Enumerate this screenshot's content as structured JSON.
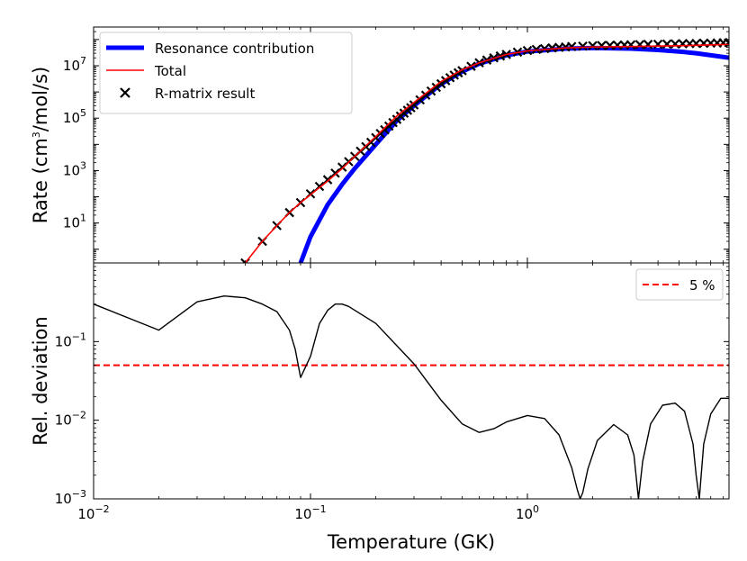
{
  "chart_data": [
    {
      "type": "line",
      "panel": "top",
      "ylabel": "Rate (cm3/mol/s)",
      "ylabel_parts": {
        "pre": "Rate (cm",
        "sup": "3",
        "post": "/mol/s)"
      },
      "xscale": "log",
      "yscale": "log",
      "xlim": [
        0.01,
        8.5
      ],
      "ylim": [
        0.3,
        300000000
      ],
      "yticks": [
        {
          "value": 10,
          "base": "10",
          "exp": "1"
        },
        {
          "value": 1000,
          "base": "10",
          "exp": "3"
        },
        {
          "value": 100000,
          "base": "10",
          "exp": "5"
        },
        {
          "value": 10000000,
          "base": "10",
          "exp": "7"
        }
      ],
      "legend": {
        "placement": "top-left",
        "entries": [
          {
            "label": "Resonance contribution",
            "color": "#0000ff",
            "style": "thick-line"
          },
          {
            "label": "Total",
            "color": "#ff0000",
            "style": "line"
          },
          {
            "label": "R-matrix result",
            "color": "#000000",
            "style": "x-marker"
          }
        ]
      },
      "series": [
        {
          "name": "Resonance contribution",
          "color": "#0000ff",
          "x": [
            0.09,
            0.1,
            0.12,
            0.14,
            0.16,
            0.2,
            0.25,
            0.3,
            0.4,
            0.5,
            0.6,
            0.8,
            1.0,
            1.5,
            2.0,
            3.0,
            4.0,
            5.0,
            6.0,
            8.5
          ],
          "y": [
            0.3,
            3,
            50,
            300,
            1200,
            10000,
            80000,
            300000,
            2000000,
            6000000,
            12000000,
            25000000,
            35000000,
            45000000,
            48000000,
            45000000,
            40000000,
            35000000,
            30000000,
            20000000
          ]
        },
        {
          "name": "Total",
          "color": "#ff0000",
          "x": [
            0.05,
            0.06,
            0.07,
            0.08,
            0.09,
            0.1,
            0.12,
            0.14,
            0.16,
            0.2,
            0.25,
            0.3,
            0.4,
            0.5,
            0.6,
            0.8,
            1.0,
            1.5,
            2.0,
            3.0,
            4.0,
            5.0,
            6.0,
            8.5
          ],
          "y": [
            0.3,
            2,
            8,
            25,
            60,
            120,
            400,
            1200,
            3500,
            20000,
            120000,
            400000,
            2500000,
            7000000,
            13000000,
            27000000,
            37000000,
            48000000,
            52000000,
            54000000,
            56000000,
            58000000,
            60000000,
            65000000
          ]
        },
        {
          "name": "R-matrix result",
          "color": "#000000",
          "x": [
            0.05,
            0.06,
            0.07,
            0.08,
            0.09,
            0.1,
            0.11,
            0.12,
            0.13,
            0.14,
            0.15,
            0.16,
            0.17,
            0.18,
            0.19,
            0.2,
            0.21,
            0.22,
            0.23,
            0.24,
            0.25,
            0.26,
            0.27,
            0.28,
            0.29,
            0.3,
            0.32,
            0.34,
            0.36,
            0.38,
            0.4,
            0.42,
            0.44,
            0.46,
            0.48,
            0.5,
            0.55,
            0.6,
            0.65,
            0.7,
            0.75,
            0.8,
            0.9,
            1.0,
            1.1,
            1.2,
            1.3,
            1.4,
            1.5,
            1.6,
            1.8,
            2.0,
            2.2,
            2.4,
            2.6,
            2.8,
            3.0,
            3.3,
            3.6,
            4.0,
            4.4,
            4.8,
            5.2,
            5.6,
            6.0,
            6.5,
            7.0,
            7.5,
            8.0,
            8.5
          ],
          "y": [
            0.3,
            2,
            8,
            25,
            60,
            130,
            250,
            450,
            800,
            1350,
            2200,
            3500,
            5500,
            8200,
            12000,
            18000,
            26000,
            36000,
            50000,
            68000,
            90000,
            120000,
            155000,
            200000,
            250000,
            320000,
            500000,
            750000,
            1080000,
            1500000,
            2050000,
            2700000,
            3500000,
            4400000,
            5400000,
            6500000,
            9500000,
            13000000,
            16500000,
            20000000,
            23500000,
            27000000,
            33000000,
            38000000,
            42000000,
            45000000,
            48000000,
            50000000,
            52000000,
            54000000,
            56000000,
            58000000,
            59000000,
            60000000,
            61000000,
            62000000,
            63000000,
            64000000,
            65000000,
            66000000,
            67000000,
            68000000,
            69000000,
            70000000,
            71000000,
            72000000,
            73000000,
            74000000,
            75000000,
            76000000
          ]
        }
      ]
    },
    {
      "type": "line",
      "panel": "bottom",
      "xlabel": "Temperature (GK)",
      "ylabel": "Rel. deviation",
      "xscale": "log",
      "yscale": "log",
      "xlim": [
        0.01,
        8.5
      ],
      "ylim": [
        0.001,
        1.0
      ],
      "xticks": [
        {
          "value": 0.01,
          "base": "10",
          "exp": "−2"
        },
        {
          "value": 0.1,
          "base": "10",
          "exp": "−1"
        },
        {
          "value": 1,
          "base": "10",
          "exp": "0"
        }
      ],
      "yticks": [
        {
          "value": 0.001,
          "base": "10",
          "exp": "−3"
        },
        {
          "value": 0.01,
          "base": "10",
          "exp": "−2"
        },
        {
          "value": 0.1,
          "base": "10",
          "exp": "−1"
        }
      ],
      "legend": {
        "placement": "top-right",
        "entries": [
          {
            "label": "5 %",
            "color": "#ff0000",
            "style": "dashed-line"
          }
        ]
      },
      "reference_line": {
        "name": "5 %",
        "y": 0.05,
        "color": "#ff0000",
        "style": "dashed"
      },
      "series": [
        {
          "name": "Rel. deviation",
          "color": "#000000",
          "x": [
            0.01,
            0.02,
            0.03,
            0.04,
            0.05,
            0.06,
            0.07,
            0.08,
            0.085,
            0.09,
            0.1,
            0.11,
            0.12,
            0.13,
            0.14,
            0.15,
            0.2,
            0.3,
            0.4,
            0.5,
            0.6,
            0.7,
            0.8,
            1.0,
            1.2,
            1.4,
            1.6,
            1.7,
            1.75,
            1.8,
            1.9,
            2.1,
            2.5,
            2.9,
            3.1,
            3.25,
            3.4,
            3.7,
            4.2,
            4.8,
            5.3,
            5.8,
            6.0,
            6.2,
            6.5,
            7.0,
            7.8,
            8.5
          ],
          "y": [
            0.3,
            0.14,
            0.32,
            0.38,
            0.36,
            0.3,
            0.24,
            0.14,
            0.08,
            0.035,
            0.065,
            0.17,
            0.25,
            0.3,
            0.3,
            0.28,
            0.17,
            0.052,
            0.018,
            0.009,
            0.007,
            0.0078,
            0.0095,
            0.0115,
            0.0105,
            0.0065,
            0.0025,
            0.0013,
            0.001,
            0.0012,
            0.0024,
            0.0055,
            0.0088,
            0.0065,
            0.0036,
            0.001,
            0.003,
            0.009,
            0.0155,
            0.0165,
            0.013,
            0.005,
            0.002,
            0.001,
            0.005,
            0.012,
            0.019,
            0.019
          ]
        }
      ]
    }
  ]
}
